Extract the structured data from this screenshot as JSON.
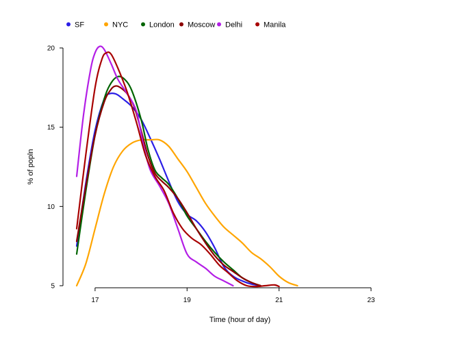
{
  "chart_data": {
    "type": "line",
    "title": "",
    "xlabel": "Time (hour of day)",
    "ylabel": "% of popln",
    "xlim": [
      16.6,
      23
    ],
    "ylim": [
      5,
      20
    ],
    "xticks": [
      17,
      19,
      21,
      23
    ],
    "yticks": [
      5,
      10,
      15,
      20
    ],
    "grid": false,
    "legend": "top-left",
    "series": [
      {
        "name": "SF",
        "color": "#2b1ee6",
        "points": [
          [
            16.6,
            7.5
          ],
          [
            16.8,
            11.5
          ],
          [
            17.0,
            14.8
          ],
          [
            17.2,
            16.8
          ],
          [
            17.3,
            17.1
          ],
          [
            17.45,
            17.1
          ],
          [
            17.6,
            16.8
          ],
          [
            17.8,
            16.3
          ],
          [
            18.0,
            15.5
          ],
          [
            18.2,
            14.3
          ],
          [
            18.4,
            13.0
          ],
          [
            18.6,
            11.6
          ],
          [
            18.8,
            10.3
          ],
          [
            19.0,
            9.5
          ],
          [
            19.2,
            9.1
          ],
          [
            19.4,
            8.4
          ],
          [
            19.6,
            7.4
          ],
          [
            19.8,
            6.2
          ],
          [
            20.0,
            5.6
          ],
          [
            20.2,
            5.3
          ],
          [
            20.4,
            5.1
          ],
          [
            20.6,
            5.0
          ]
        ]
      },
      {
        "name": "NYC",
        "color": "#ffa500",
        "points": [
          [
            16.6,
            5.0
          ],
          [
            16.8,
            6.4
          ],
          [
            17.0,
            8.6
          ],
          [
            17.2,
            10.8
          ],
          [
            17.4,
            12.5
          ],
          [
            17.6,
            13.5
          ],
          [
            17.8,
            14.0
          ],
          [
            18.0,
            14.2
          ],
          [
            18.2,
            14.2
          ],
          [
            18.4,
            14.2
          ],
          [
            18.6,
            13.8
          ],
          [
            18.8,
            13.0
          ],
          [
            19.0,
            12.2
          ],
          [
            19.2,
            11.2
          ],
          [
            19.4,
            10.2
          ],
          [
            19.6,
            9.4
          ],
          [
            19.8,
            8.7
          ],
          [
            20.0,
            8.2
          ],
          [
            20.2,
            7.7
          ],
          [
            20.4,
            7.1
          ],
          [
            20.6,
            6.7
          ],
          [
            20.8,
            6.2
          ],
          [
            21.0,
            5.6
          ],
          [
            21.2,
            5.2
          ],
          [
            21.4,
            5.0
          ]
        ]
      },
      {
        "name": "London",
        "color": "#006400",
        "points": [
          [
            16.6,
            7.0
          ],
          [
            16.8,
            11.0
          ],
          [
            17.0,
            14.5
          ],
          [
            17.2,
            16.8
          ],
          [
            17.35,
            17.8
          ],
          [
            17.5,
            18.2
          ],
          [
            17.65,
            18.0
          ],
          [
            17.8,
            17.3
          ],
          [
            18.0,
            15.5
          ],
          [
            18.15,
            13.6
          ],
          [
            18.3,
            12.3
          ],
          [
            18.45,
            11.8
          ],
          [
            18.6,
            11.4
          ],
          [
            18.8,
            10.5
          ],
          [
            19.0,
            9.4
          ],
          [
            19.2,
            8.6
          ],
          [
            19.4,
            7.8
          ],
          [
            19.6,
            7.1
          ],
          [
            19.8,
            6.5
          ],
          [
            20.0,
            6.0
          ],
          [
            20.2,
            5.5
          ],
          [
            20.4,
            5.2
          ],
          [
            20.6,
            5.0
          ]
        ]
      },
      {
        "name": "Moscow",
        "color": "#8b0000",
        "points": [
          [
            16.6,
            7.8
          ],
          [
            16.8,
            11.3
          ],
          [
            17.0,
            14.5
          ],
          [
            17.2,
            16.6
          ],
          [
            17.35,
            17.4
          ],
          [
            17.45,
            17.6
          ],
          [
            17.55,
            17.5
          ],
          [
            17.7,
            17.1
          ],
          [
            17.85,
            16.3
          ],
          [
            18.0,
            14.8
          ],
          [
            18.15,
            13.2
          ],
          [
            18.3,
            12.1
          ],
          [
            18.45,
            11.6
          ],
          [
            18.6,
            11.2
          ],
          [
            18.8,
            10.5
          ],
          [
            19.0,
            9.6
          ],
          [
            19.2,
            8.6
          ],
          [
            19.4,
            7.7
          ],
          [
            19.6,
            6.9
          ],
          [
            19.8,
            6.3
          ],
          [
            20.0,
            5.9
          ],
          [
            20.2,
            5.5
          ],
          [
            20.4,
            5.2
          ],
          [
            20.6,
            5.0
          ]
        ]
      },
      {
        "name": "Delhi",
        "color": "#b31ee6",
        "points": [
          [
            16.6,
            11.9
          ],
          [
            16.75,
            15.8
          ],
          [
            16.9,
            18.6
          ],
          [
            17.0,
            19.7
          ],
          [
            17.1,
            20.1
          ],
          [
            17.2,
            19.9
          ],
          [
            17.35,
            19.0
          ],
          [
            17.5,
            18.0
          ],
          [
            17.7,
            17.1
          ],
          [
            17.9,
            16.0
          ],
          [
            18.05,
            13.9
          ],
          [
            18.2,
            12.3
          ],
          [
            18.4,
            11.3
          ],
          [
            18.6,
            10.2
          ],
          [
            18.8,
            8.6
          ],
          [
            19.0,
            7.0
          ],
          [
            19.2,
            6.5
          ],
          [
            19.4,
            6.1
          ],
          [
            19.6,
            5.6
          ],
          [
            19.8,
            5.3
          ],
          [
            20.0,
            5.0
          ]
        ]
      },
      {
        "name": "Manila",
        "color": "#a80000",
        "points": [
          [
            16.6,
            8.6
          ],
          [
            16.8,
            13.3
          ],
          [
            17.0,
            17.5
          ],
          [
            17.15,
            19.3
          ],
          [
            17.25,
            19.7
          ],
          [
            17.35,
            19.6
          ],
          [
            17.5,
            18.7
          ],
          [
            17.7,
            17.2
          ],
          [
            17.9,
            15.3
          ],
          [
            18.1,
            13.2
          ],
          [
            18.3,
            11.9
          ],
          [
            18.5,
            11.0
          ],
          [
            18.7,
            9.6
          ],
          [
            18.9,
            8.6
          ],
          [
            19.1,
            8.0
          ],
          [
            19.3,
            7.6
          ],
          [
            19.5,
            7.0
          ],
          [
            19.7,
            6.3
          ],
          [
            19.9,
            5.8
          ],
          [
            20.1,
            5.3
          ],
          [
            20.3,
            5.0
          ],
          [
            20.5,
            4.95
          ],
          [
            20.7,
            5.0
          ],
          [
            20.9,
            5.05
          ],
          [
            21.0,
            4.95
          ]
        ]
      }
    ]
  }
}
